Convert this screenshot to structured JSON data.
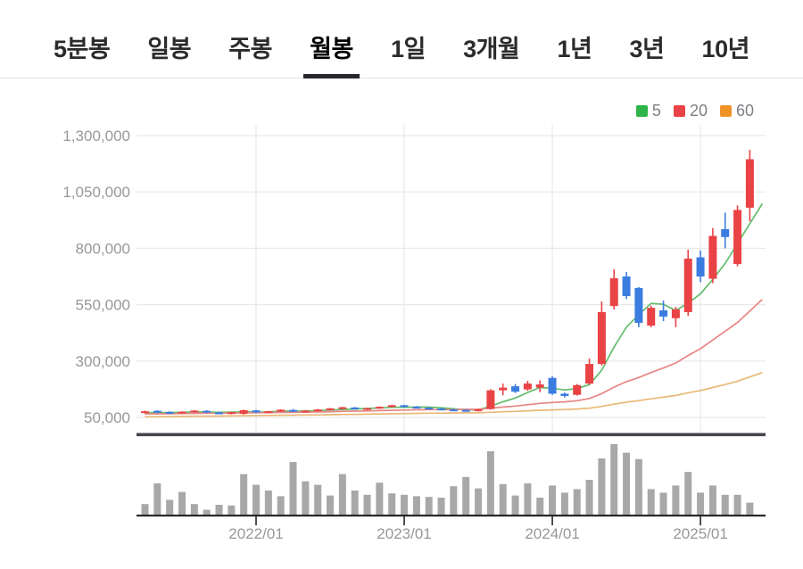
{
  "tabs": {
    "items": [
      {
        "label": "5분봉",
        "active": false
      },
      {
        "label": "일봉",
        "active": false
      },
      {
        "label": "주봉",
        "active": false
      },
      {
        "label": "월봉",
        "active": true
      },
      {
        "label": "1일",
        "active": false
      },
      {
        "label": "3개월",
        "active": false
      },
      {
        "label": "1년",
        "active": false
      },
      {
        "label": "3년",
        "active": false
      },
      {
        "label": "10년",
        "active": false
      }
    ]
  },
  "legend": {
    "items": [
      {
        "label": "5",
        "color": "#2eb448"
      },
      {
        "label": "20",
        "color": "#e94345"
      },
      {
        "label": "60",
        "color": "#ef9327"
      }
    ]
  },
  "chart_data": {
    "type": "candlestick",
    "interval": "monthly",
    "y_ticks": [
      "1,300,000",
      "1,050,000",
      "800,000",
      "550,000",
      "300,000",
      "50,000"
    ],
    "y_range": [
      50000,
      1300000
    ],
    "x_ticks": [
      "2022/01",
      "2023/01",
      "2024/01",
      "2025/01"
    ],
    "grid": true,
    "legend_position": "top-right",
    "candle_columns": [
      "month",
      "open",
      "high",
      "low",
      "close"
    ],
    "candles": [
      [
        "2021/04",
        70000,
        80000,
        67000,
        77000
      ],
      [
        "2021/05",
        79000,
        82000,
        69000,
        72000
      ],
      [
        "2021/06",
        74000,
        77000,
        67000,
        69000
      ],
      [
        "2021/07",
        69000,
        77000,
        67000,
        75000
      ],
      [
        "2021/08",
        74000,
        82000,
        72000,
        80000
      ],
      [
        "2021/09",
        79000,
        82000,
        69000,
        72000
      ],
      [
        "2021/10",
        72000,
        75000,
        64000,
        67000
      ],
      [
        "2021/11",
        66000,
        75000,
        63000,
        73000
      ],
      [
        "2021/12",
        66000,
        84000,
        62000,
        82000
      ],
      [
        "2022/01",
        81000,
        84000,
        69000,
        72000
      ],
      [
        "2022/02",
        72000,
        79000,
        70000,
        77000
      ],
      [
        "2022/03",
        76000,
        86000,
        74000,
        84000
      ],
      [
        "2022/04",
        83000,
        87000,
        73000,
        76000
      ],
      [
        "2022/05",
        75000,
        82000,
        73000,
        80000
      ],
      [
        "2022/06",
        79000,
        87000,
        77000,
        85000
      ],
      [
        "2022/07",
        84000,
        92000,
        82000,
        90000
      ],
      [
        "2022/08",
        89000,
        97000,
        86000,
        95000
      ],
      [
        "2022/09",
        94000,
        96000,
        84000,
        86000
      ],
      [
        "2022/10",
        85000,
        93000,
        83000,
        91000
      ],
      [
        "2022/11",
        90000,
        99000,
        88000,
        97000
      ],
      [
        "2022/12",
        96000,
        106000,
        94000,
        104000
      ],
      [
        "2023/01",
        104000,
        106000,
        94000,
        96000
      ],
      [
        "2023/02",
        97000,
        100000,
        90000,
        92000
      ],
      [
        "2023/03",
        93000,
        96000,
        86000,
        88000
      ],
      [
        "2023/04",
        89000,
        92000,
        82000,
        84000
      ],
      [
        "2023/05",
        85000,
        88000,
        78000,
        80000
      ],
      [
        "2023/06",
        83000,
        86000,
        76000,
        78000
      ],
      [
        "2023/07",
        78000,
        88000,
        76000,
        86000
      ],
      [
        "2023/08",
        87000,
        175000,
        84000,
        170000
      ],
      [
        "2023/09",
        170000,
        200000,
        148000,
        182000
      ],
      [
        "2023/10",
        188000,
        198000,
        158000,
        164000
      ],
      [
        "2023/11",
        174000,
        212000,
        168000,
        200000
      ],
      [
        "2023/12",
        182000,
        214000,
        162000,
        196000
      ],
      [
        "2024/01",
        225000,
        232000,
        150000,
        155000
      ],
      [
        "2024/02",
        155000,
        160000,
        138000,
        145000
      ],
      [
        "2024/03",
        150000,
        198000,
        147000,
        193000
      ],
      [
        "2024/04",
        200000,
        311000,
        195000,
        287000
      ],
      [
        "2024/05",
        287000,
        564000,
        280000,
        517000
      ],
      [
        "2024/06",
        544000,
        707000,
        529000,
        667000
      ],
      [
        "2024/07",
        675000,
        695000,
        575000,
        588000
      ],
      [
        "2024/08",
        624000,
        628000,
        450000,
        469000
      ],
      [
        "2024/09",
        457000,
        545000,
        450000,
        536000
      ],
      [
        "2024/10",
        525000,
        568000,
        477000,
        497000
      ],
      [
        "2024/11",
        490000,
        540000,
        450000,
        529000
      ],
      [
        "2024/12",
        517000,
        794000,
        500000,
        754000
      ],
      [
        "2025/01",
        760000,
        790000,
        650000,
        675000
      ],
      [
        "2025/02",
        665000,
        890000,
        645000,
        855000
      ],
      [
        "2025/03",
        885000,
        958000,
        800000,
        850000
      ],
      [
        "2025/04",
        730000,
        990000,
        720000,
        970000
      ],
      [
        "2025/05",
        980000,
        1237000,
        920000,
        1195000
      ]
    ],
    "volume_rel_pct": [
      16,
      45,
      22,
      33,
      16,
      8,
      15,
      14,
      58,
      43,
      35,
      27,
      75,
      48,
      43,
      28,
      58,
      35,
      29,
      46,
      31,
      29,
      27,
      26,
      25,
      41,
      54,
      38,
      90,
      44,
      28,
      45,
      25,
      42,
      32,
      37,
      50,
      80,
      100,
      88,
      79,
      37,
      32,
      42,
      61,
      32,
      42,
      29,
      29,
      18
    ],
    "moving_averages": [
      {
        "period": 5,
        "color": "#63bd6a"
      },
      {
        "period": 20,
        "color": "#e98585"
      },
      {
        "period": 60,
        "color": "#e9b877"
      }
    ],
    "colors": {
      "candle_up": "#e94345",
      "candle_down": "#3b7ce0",
      "volume_bar": "#a8a8a8",
      "grid_line": "#e9e9e9",
      "axis_label": "#97989b",
      "separator": "#45454d",
      "volume_baseline": "#26262c"
    }
  }
}
